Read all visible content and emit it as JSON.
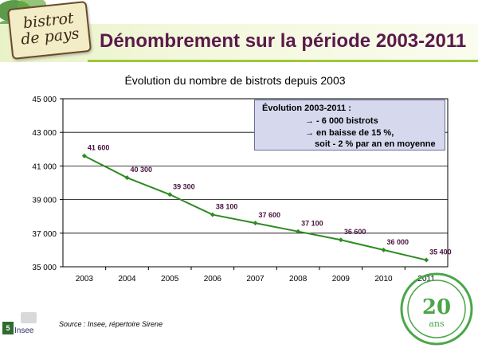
{
  "header": {
    "logo_text": "bistrot de pays",
    "title": "Dénombrement sur la période 2003-2011"
  },
  "colors": {
    "title": "#5a1a4a",
    "line": "#2e8b22",
    "labels": "#4b1240",
    "accent_green": "#9bc83c",
    "box_fill": "#d6d9ee"
  },
  "info_box": {
    "header": "Évolution 2003-2011 :",
    "line1": "→ - 6 000 bistrots",
    "line2": "→ en baisse de 15 %,",
    "line3": "soit - 2 % par an en moyenne"
  },
  "footer": {
    "source": "Source : Insee, répertoire Sirene",
    "page_number": "5",
    "insee_label": "Insee",
    "stamp_text": "20 ans · Bistrot de Pays"
  },
  "chart_data": {
    "type": "line",
    "title": "Évolution du nombre de bistrots depuis 2003",
    "x": [
      "2003",
      "2004",
      "2005",
      "2006",
      "2007",
      "2008",
      "2009",
      "2010",
      "2011"
    ],
    "series": [
      {
        "values": [
          41600,
          40300,
          39300,
          38100,
          37600,
          37100,
          36600,
          36000,
          35400
        ],
        "labels": [
          "41 600",
          "40 300",
          "39 300",
          "38 100",
          "37 600",
          "37 100",
          "36 600",
          "36 000",
          "35 400"
        ]
      }
    ],
    "ylim": [
      35000,
      45000
    ],
    "yticks": [
      35000,
      37000,
      39000,
      41000,
      43000,
      45000
    ],
    "ytick_labels": [
      "35 000",
      "37 000",
      "39 000",
      "41 000",
      "43 000",
      "45 000"
    ],
    "grid": true
  }
}
